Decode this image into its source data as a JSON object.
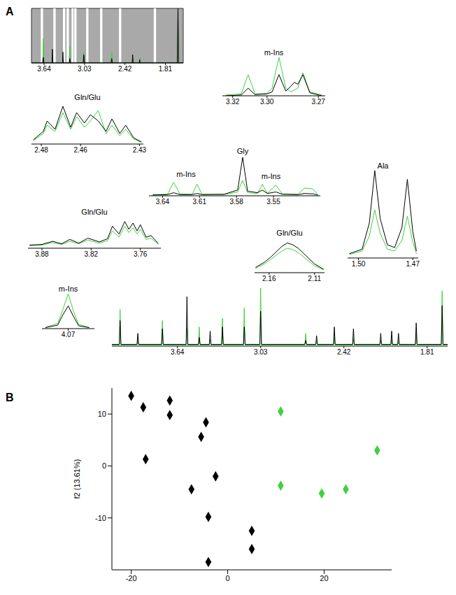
{
  "panel_labels": [
    "A",
    "B"
  ],
  "chart_data": [
    {
      "type": "line",
      "x": [
        3.83,
        3.66,
        3.651,
        3.642,
        3.52,
        3.514,
        3.508,
        3.36,
        3.356,
        3.35,
        3.26,
        3.251,
        3.243,
        3.05,
        3.04,
        3.03,
        2.63,
        2.619,
        2.61,
        2.31,
        2.303,
        2.296,
        2.2,
        2.198,
        2.19,
        1.63,
        1.619,
        1.61,
        1.54
      ],
      "series": [
        {
          "color": "#3fd13f",
          "values": [
            0,
            0,
            45,
            0,
            0,
            10,
            0,
            0,
            8,
            0,
            0,
            30,
            0,
            0,
            20,
            0,
            0,
            20,
            0,
            0,
            6,
            0,
            0,
            10,
            0,
            0,
            60,
            0,
            0
          ]
        },
        {
          "color": "#000000",
          "values": [
            0,
            0,
            10,
            0,
            0,
            25,
            0,
            0,
            20,
            0,
            0,
            8,
            0,
            0,
            15,
            0,
            0,
            8,
            0,
            0,
            15,
            0,
            0,
            6,
            0,
            0,
            100,
            0,
            0
          ]
        }
      ],
      "bands": [
        [
          3.69,
          3.655
        ],
        [
          3.5,
          3.465
        ],
        [
          3.355,
          3.32
        ],
        [
          3.3,
          3.265
        ],
        [
          3.225,
          3.195
        ],
        [
          3.185,
          3.15
        ],
        [
          3.005,
          2.97
        ],
        [
          2.795,
          2.76
        ],
        [
          2.51,
          2.475
        ],
        [
          1.985,
          1.95
        ]
      ],
      "xlim": [
        3.83,
        1.54
      ],
      "xticks": [
        3.64,
        3.03,
        2.42,
        1.81
      ],
      "ylim": [
        0,
        100
      ],
      "tick_labels": "x"
    },
    {
      "type": "line",
      "title": "m-Ins",
      "x": [
        3.324,
        3.315,
        3.311,
        3.307,
        3.3,
        3.297,
        3.293,
        3.289,
        3.286,
        3.284,
        3.282,
        3.279,
        3.275,
        3.268
      ],
      "series": [
        {
          "color": "#3fd13f",
          "values": [
            2,
            5,
            55,
            5,
            6,
            20,
            100,
            20,
            10,
            15,
            20,
            60,
            10,
            2
          ]
        },
        {
          "color": "#000000",
          "values": [
            0,
            2,
            20,
            3,
            5,
            10,
            55,
            12,
            25,
            35,
            30,
            55,
            8,
            0
          ]
        }
      ],
      "xlim": [
        3.326,
        3.266
      ],
      "xticks": [
        3.32,
        {
          "value": 3.3,
          "label": "3.30"
        },
        3.27
      ],
      "ylim": [
        0,
        100
      ],
      "tick_labels": "x"
    },
    {
      "type": "line",
      "title": "Gln/Glu",
      "x": [
        2.484,
        2.479,
        2.477,
        2.473,
        2.469,
        2.465,
        2.462,
        2.458,
        2.455,
        2.451,
        2.447,
        2.444,
        2.44,
        2.437,
        2.433,
        2.429
      ],
      "series": [
        {
          "color": "#3fd13f",
          "values": [
            8,
            25,
            45,
            30,
            75,
            35,
            65,
            40,
            55,
            80,
            25,
            45,
            20,
            35,
            12,
            4
          ]
        },
        {
          "color": "#000000",
          "values": [
            10,
            30,
            55,
            35,
            90,
            40,
            75,
            50,
            70,
            55,
            30,
            60,
            25,
            45,
            15,
            5
          ]
        }
      ],
      "xlim": [
        2.485,
        2.428
      ],
      "xticks": [
        2.48,
        2.46,
        2.43
      ],
      "ylim": [
        0,
        100
      ],
      "tick_labels": "x"
    },
    {
      "type": "line",
      "x": [
        3.648,
        3.636,
        3.631,
        3.626,
        3.616,
        3.612,
        3.608,
        3.59,
        3.579,
        3.575,
        3.571,
        3.563,
        3.559,
        3.555,
        3.548,
        3.543,
        3.53,
        3.525,
        3.518,
        3.514
      ],
      "series": [
        {
          "color": "#3fd13f",
          "values": [
            3,
            4,
            35,
            5,
            4,
            30,
            4,
            3,
            10,
            40,
            8,
            6,
            30,
            6,
            28,
            5,
            4,
            20,
            18,
            3
          ]
        },
        {
          "color": "#000000",
          "values": [
            2,
            3,
            8,
            3,
            3,
            6,
            3,
            4,
            15,
            100,
            12,
            8,
            15,
            6,
            10,
            4,
            3,
            6,
            5,
            2
          ]
        }
      ],
      "annotations": [
        {
          "text": "m-Ins",
          "x": 3.621,
          "y": 40
        },
        {
          "text": "Gly",
          "x": 3.575,
          "y": 100
        },
        {
          "text": "m-Ins",
          "x": 3.552,
          "y": 35
        }
      ],
      "xlim": [
        3.651,
        3.512
      ],
      "xticks": [
        3.64,
        3.61,
        3.58,
        3.55
      ],
      "ylim": [
        0,
        100
      ],
      "tick_labels": "x"
    },
    {
      "type": "line",
      "title": "Ala",
      "x": [
        1.505,
        1.498,
        1.494,
        1.491,
        1.488,
        1.484,
        1.48,
        1.476,
        1.473,
        1.47,
        1.468
      ],
      "series": [
        {
          "color": "#3fd13f",
          "values": [
            4,
            8,
            25,
            55,
            28,
            10,
            8,
            20,
            48,
            18,
            5
          ]
        },
        {
          "color": "#000000",
          "values": [
            5,
            10,
            40,
            100,
            45,
            15,
            12,
            35,
            90,
            30,
            8
          ]
        }
      ],
      "xlim": [
        1.506,
        1.467
      ],
      "xticks": [
        {
          "value": 1.5,
          "label": "1.50"
        },
        1.47
      ],
      "ylim": [
        0,
        100
      ],
      "tick_labels": "x"
    },
    {
      "type": "line",
      "title": "Gln/Glu",
      "x": [
        3.895,
        3.88,
        3.867,
        3.856,
        3.846,
        3.835,
        3.824,
        3.81,
        3.8,
        3.794,
        3.786,
        3.779,
        3.774,
        3.769,
        3.764,
        3.76,
        3.753,
        3.747,
        3.738
      ],
      "series": [
        {
          "color": "#3fd13f",
          "values": [
            8,
            10,
            18,
            12,
            22,
            14,
            26,
            16,
            24,
            55,
            35,
            70,
            50,
            65,
            45,
            60,
            28,
            32,
            12
          ]
        },
        {
          "color": "#000000",
          "values": [
            10,
            12,
            22,
            14,
            28,
            16,
            32,
            20,
            30,
            70,
            45,
            85,
            60,
            80,
            55,
            75,
            35,
            40,
            15
          ]
        }
      ],
      "xlim": [
        3.897,
        3.735
      ],
      "xticks": [
        3.88,
        3.82,
        3.76
      ],
      "ylim": [
        0,
        100
      ],
      "tick_labels": "x"
    },
    {
      "type": "line",
      "title": "Gln/Glu",
      "x": [
        2.175,
        2.165,
        2.158,
        2.152,
        2.146,
        2.14,
        2.134,
        2.128,
        2.122,
        2.116,
        2.11,
        2.1
      ],
      "series": [
        {
          "color": "#3fd13f",
          "values": [
            12,
            25,
            38,
            50,
            62,
            70,
            66,
            58,
            45,
            32,
            20,
            8
          ]
        },
        {
          "color": "#000000",
          "values": [
            15,
            30,
            45,
            60,
            75,
            85,
            80,
            70,
            55,
            40,
            25,
            10
          ]
        }
      ],
      "xlim": [
        2.176,
        2.099
      ],
      "xticks": [
        2.16,
        2.11
      ],
      "ylim": [
        0,
        100
      ],
      "tick_labels": "x"
    },
    {
      "type": "line",
      "title": "m-Ins",
      "x": [
        4.083,
        4.076,
        4.073,
        4.07,
        4.067,
        4.064,
        4.058
      ],
      "series": [
        {
          "color": "#3fd13f",
          "values": [
            3,
            15,
            55,
            100,
            50,
            12,
            3
          ]
        },
        {
          "color": "#000000",
          "values": [
            3,
            10,
            40,
            65,
            35,
            8,
            3
          ]
        }
      ],
      "xlim": [
        4.085,
        4.055
      ],
      "xticks": [
        4.07
      ],
      "ylim": [
        0,
        100
      ],
      "tick_labels": "x"
    },
    {
      "type": "line",
      "x": [
        4.12,
        4.066,
        4.06,
        4.054,
        3.936,
        3.93,
        3.924,
        3.756,
        3.75,
        3.744,
        3.576,
        3.57,
        3.564,
        3.486,
        3.48,
        3.474,
        3.406,
        3.4,
        3.394,
        3.316,
        3.31,
        3.304,
        3.156,
        3.15,
        3.144,
        3.036,
        3.03,
        3.024,
        2.706,
        2.7,
        2.694,
        2.626,
        2.62,
        2.614,
        2.496,
        2.49,
        2.484,
        2.356,
        2.35,
        2.344,
        2.156,
        2.15,
        2.144,
        2.076,
        2.07,
        2.064,
        2.026,
        2.02,
        2.014,
        1.896,
        1.89,
        1.884,
        1.706,
        1.7,
        1.694,
        1.66
      ],
      "series": [
        {
          "color": "#3fd13f",
          "values": [
            2,
            2,
            63,
            2,
            2,
            10,
            2,
            2,
            44,
            2,
            2,
            30,
            2,
            2,
            33,
            2,
            2,
            12,
            2,
            2,
            48,
            2,
            2,
            66,
            2,
            2,
            100,
            2,
            2,
            22,
            2,
            2,
            8,
            2,
            2,
            15,
            2,
            2,
            12,
            2,
            2,
            10,
            2,
            2,
            12,
            2,
            2,
            8,
            2,
            2,
            20,
            2,
            2,
            95,
            2,
            2
          ]
        },
        {
          "color": "#000000",
          "values": [
            3,
            3,
            44,
            3,
            3,
            22,
            3,
            3,
            30,
            3,
            3,
            85,
            3,
            3,
            15,
            3,
            3,
            26,
            3,
            3,
            33,
            3,
            3,
            33,
            3,
            3,
            60,
            3,
            3,
            10,
            3,
            3,
            18,
            3,
            3,
            33,
            3,
            3,
            30,
            3,
            3,
            22,
            3,
            3,
            26,
            3,
            3,
            22,
            3,
            3,
            40,
            3,
            3,
            70,
            3,
            3
          ]
        }
      ],
      "xlim": [
        4.12,
        1.66
      ],
      "xticks": [
        3.64,
        3.03,
        2.42,
        1.81
      ],
      "ylim": [
        0,
        100
      ],
      "tick_labels": "x"
    },
    {
      "type": "scatter",
      "ylabel": "f2 (13.61%)",
      "marker": "diamond",
      "series": [
        {
          "color": "#000000",
          "x": [
            -20,
            -17.5,
            -12,
            -12,
            -4.5,
            -5.5,
            -17,
            -2.5,
            -7.5,
            -4,
            5,
            5,
            -4
          ],
          "values": [
            13.5,
            11.3,
            12.6,
            9.8,
            8.4,
            5.6,
            1.3,
            -2,
            -4.5,
            -9.8,
            -12.5,
            -16,
            -18.5
          ]
        },
        {
          "color": "#3fd13f",
          "x": [
            11,
            31,
            11,
            19.5,
            24.5
          ],
          "values": [
            10.5,
            3,
            -3.8,
            -5.3,
            -4.5
          ]
        }
      ],
      "xlim": [
        -24,
        34
      ],
      "xticks": [
        -20,
        0,
        20
      ],
      "ylim": [
        -20,
        15
      ],
      "yticks": [
        -10,
        0,
        10
      ]
    }
  ]
}
